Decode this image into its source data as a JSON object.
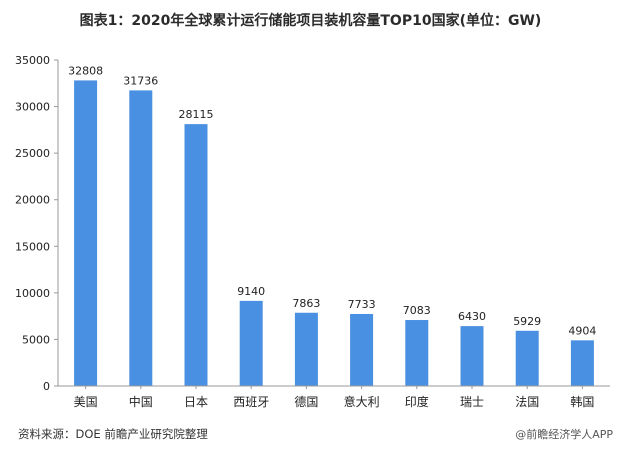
{
  "title": "图表1：2020年全球累计运行储能项目装机容量TOP10国家(单位：GW)",
  "source": "资料来源：DOE 前瞻产业研究院整理",
  "footer_brand": "@前瞻经济学人APP",
  "chart_data": {
    "type": "bar",
    "categories": [
      "美国",
      "中国",
      "日本",
      "西班牙",
      "德国",
      "意大利",
      "印度",
      "瑞士",
      "法国",
      "韩国"
    ],
    "values": [
      32808,
      31736,
      28115,
      9140,
      7863,
      7733,
      7083,
      6430,
      5929,
      4904
    ],
    "ylim": [
      0,
      35000
    ],
    "yticks": [
      0,
      5000,
      10000,
      15000,
      20000,
      25000,
      30000,
      35000
    ],
    "bar_color": "#4a90e2",
    "data_labels": true,
    "grid": false
  }
}
